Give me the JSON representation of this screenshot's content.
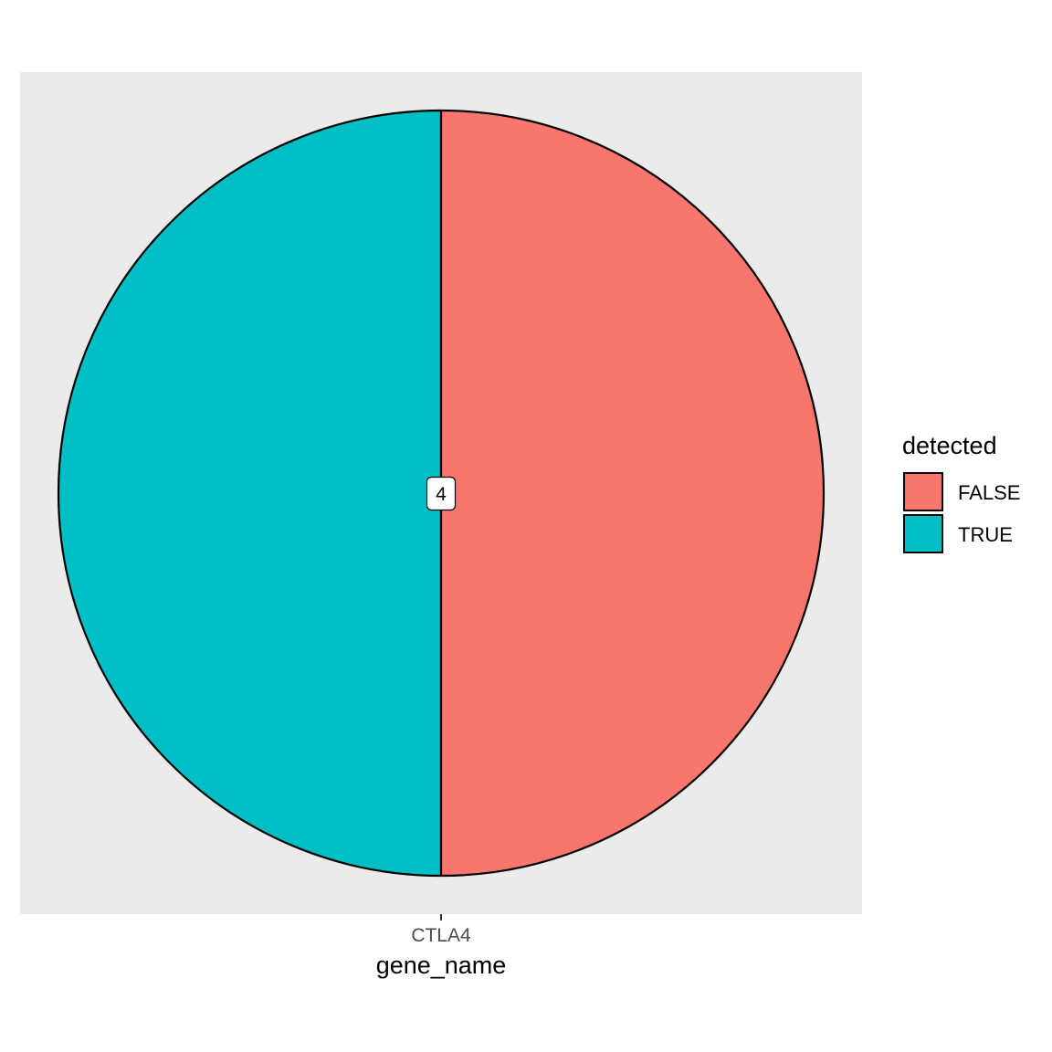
{
  "chart_data": {
    "type": "pie",
    "title": "",
    "xlabel": "gene_name",
    "ylabel": "",
    "categories": [
      "CTLA4"
    ],
    "legend": {
      "title": "detected",
      "position": "right",
      "entries": [
        {
          "label": "FALSE",
          "color": "#F8766D"
        },
        {
          "label": "TRUE",
          "color": "#00BFC4"
        }
      ]
    },
    "slices": [
      {
        "label": "FALSE",
        "value": 4,
        "color": "#F8766D"
      },
      {
        "label": "TRUE",
        "value": 4,
        "color": "#00BFC4"
      }
    ],
    "data_label": "4",
    "panel_background": "#EBEBEB",
    "grid": false
  }
}
